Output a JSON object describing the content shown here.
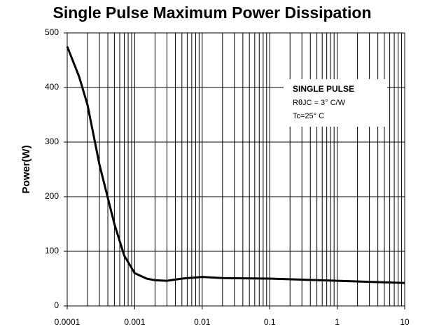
{
  "chart_data": {
    "type": "line",
    "title": "Single Pulse Maximum Power Dissipation",
    "y_label": "Power(W)",
    "x": [
      0.0001,
      0.00015,
      0.0002,
      0.0003,
      0.0005,
      0.0007,
      0.001,
      0.0015,
      0.002,
      0.003,
      0.005,
      0.01,
      0.02,
      0.1,
      1,
      10
    ],
    "values": [
      475,
      420,
      368,
      259,
      150,
      92,
      60,
      50,
      47,
      46,
      50,
      53,
      51,
      50,
      46,
      42
    ],
    "color": "#000000",
    "xlim": [
      0.0001,
      10
    ],
    "xticks": [
      0.0001,
      0.001,
      0.01,
      0.1,
      1,
      10
    ],
    "xscale": "log",
    "ylim": [
      0,
      500
    ],
    "yticks": [
      0,
      100,
      200,
      300,
      400,
      500
    ],
    "grid": true,
    "minor_grid": true,
    "annotation": [
      "SINGLE PULSE",
      "RθJC = 3° C/W",
      "Tc=25° C"
    ]
  }
}
